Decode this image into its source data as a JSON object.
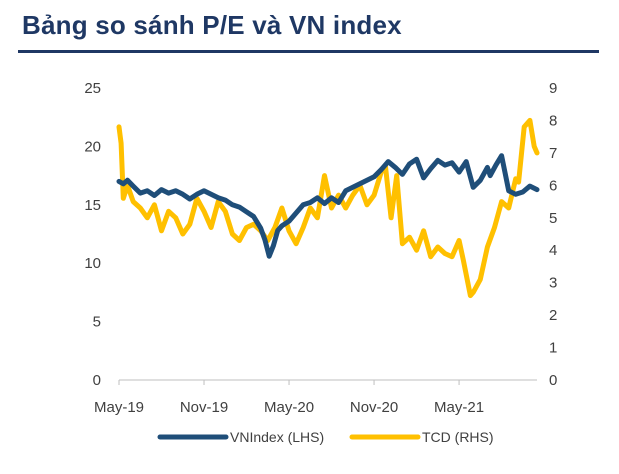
{
  "title": "Bảng so sánh P/E và VN index",
  "chart_data": {
    "type": "line",
    "title": "Bảng so sánh P/E và VN index",
    "x_tick_labels": [
      "May-19",
      "Nov-19",
      "May-20",
      "Nov-20",
      "May-21"
    ],
    "x_tick_positions": [
      0,
      6,
      12,
      18,
      24
    ],
    "x_range": [
      0,
      29.5
    ],
    "y_left": {
      "ticks": [
        "0",
        "5",
        "10",
        "15",
        "20",
        "25"
      ],
      "range": [
        0,
        25
      ]
    },
    "y_right": {
      "ticks": [
        "0",
        "1",
        "2",
        "3",
        "4",
        "5",
        "6",
        "7",
        "8",
        "9"
      ],
      "range": [
        0,
        9
      ]
    },
    "grid": false,
    "legend_position": "bottom",
    "colors": {
      "vnindex": "#1f4e79",
      "tcd": "#ffc000",
      "text": "#404040",
      "title": "#1f3864"
    },
    "series": [
      {
        "name": "VNIndex (LHS)",
        "axis": "left",
        "x": [
          0,
          0.3,
          0.6,
          1,
          1.5,
          2,
          2.5,
          3,
          3.5,
          4,
          4.5,
          5,
          5.5,
          6,
          6.5,
          7,
          7.5,
          8,
          8.5,
          9,
          9.5,
          10,
          10.3,
          10.6,
          10.9,
          11.2,
          11.5,
          12,
          12.5,
          13,
          13.5,
          14,
          14.5,
          15,
          15.5,
          16,
          16.5,
          17,
          17.5,
          18,
          18.5,
          19,
          19.5,
          20,
          20.5,
          21,
          21.5,
          22,
          22.5,
          23,
          23.5,
          24,
          24.5,
          25,
          25.5,
          26,
          26.2,
          26.6,
          27,
          27.5,
          28,
          28.5,
          29,
          29.5
        ],
        "values": [
          17.0,
          16.8,
          17.1,
          16.6,
          16.0,
          16.2,
          15.8,
          16.3,
          16.0,
          16.2,
          15.9,
          15.5,
          15.9,
          16.2,
          15.9,
          15.6,
          15.4,
          15.0,
          14.8,
          14.4,
          14.0,
          13.0,
          12.0,
          10.6,
          11.5,
          12.8,
          13.2,
          13.6,
          14.3,
          15.0,
          15.2,
          15.6,
          15.1,
          15.6,
          15.2,
          16.2,
          16.5,
          16.8,
          17.1,
          17.4,
          18.0,
          18.7,
          18.2,
          17.6,
          18.5,
          18.9,
          17.3,
          18.1,
          18.8,
          18.4,
          18.6,
          17.8,
          18.7,
          16.5,
          17.1,
          18.2,
          17.5,
          18.4,
          19.2,
          16.2,
          15.9,
          16.1,
          16.6,
          16.3
        ]
      },
      {
        "name": "TCD (RHS)",
        "axis": "right",
        "x": [
          0,
          0.15,
          0.3,
          0.6,
          1,
          1.5,
          2,
          2.5,
          3,
          3.5,
          4,
          4.5,
          5,
          5.5,
          6,
          6.5,
          7,
          7.5,
          8,
          8.5,
          9,
          9.5,
          10,
          10.5,
          11,
          11.5,
          12,
          12.5,
          13,
          13.5,
          14,
          14.5,
          15,
          15.5,
          16,
          16.5,
          17,
          17.5,
          18,
          18.5,
          18.8,
          19.2,
          19.6,
          20,
          20.5,
          21,
          21.5,
          22,
          22.5,
          23,
          23.5,
          24,
          24.3,
          24.8,
          25,
          25.5,
          26,
          26.5,
          27,
          27.5,
          28,
          28.2,
          28.6,
          29,
          29.3,
          29.5
        ],
        "values": [
          7.8,
          7.3,
          5.6,
          6.0,
          5.5,
          5.3,
          5.0,
          5.4,
          4.6,
          5.2,
          5.0,
          4.5,
          4.8,
          5.6,
          5.2,
          4.7,
          5.5,
          5.2,
          4.5,
          4.3,
          4.7,
          4.8,
          4.6,
          4.3,
          4.7,
          5.3,
          4.6,
          4.2,
          4.7,
          5.3,
          5.0,
          6.3,
          5.3,
          5.7,
          5.3,
          5.7,
          6.0,
          5.4,
          5.7,
          6.4,
          6.6,
          5.0,
          6.3,
          4.2,
          4.4,
          4.0,
          4.6,
          3.8,
          4.1,
          3.9,
          3.8,
          4.3,
          3.7,
          2.6,
          2.7,
          3.1,
          4.1,
          4.7,
          5.5,
          5.3,
          6.2,
          6.1,
          7.8,
          8.0,
          7.2,
          7.0
        ]
      }
    ]
  }
}
